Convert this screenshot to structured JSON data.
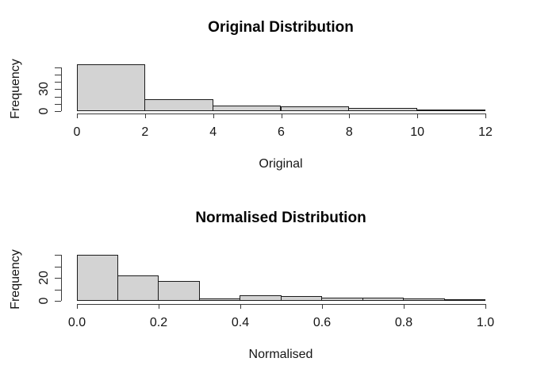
{
  "figure": {
    "background": "#ffffff",
    "text_color": "#111111"
  },
  "chart_data": [
    {
      "type": "histogram",
      "title": "Original Distribution",
      "xlabel": "Original",
      "ylabel": "Frequency",
      "breaks": [
        0,
        2,
        4,
        6,
        8,
        10,
        12
      ],
      "counts": [
        64,
        16,
        8,
        6,
        4,
        2
      ],
      "xlim": [
        0,
        12
      ],
      "ylim": [
        0,
        65
      ],
      "grid": false,
      "bar_fill": "#d3d3d3",
      "bar_border": "#1c1c1c",
      "x_ticks": [
        {
          "value": 0,
          "label": "0"
        },
        {
          "value": 2,
          "label": "2"
        },
        {
          "value": 4,
          "label": "4"
        },
        {
          "value": 6,
          "label": "6"
        },
        {
          "value": 8,
          "label": "8"
        },
        {
          "value": 10,
          "label": "10"
        },
        {
          "value": 12,
          "label": "12"
        }
      ],
      "y_ticks": [
        {
          "value": 0,
          "label": "0"
        },
        {
          "value": 10,
          "label": ""
        },
        {
          "value": 20,
          "label": ""
        },
        {
          "value": 30,
          "label": "30"
        },
        {
          "value": 40,
          "label": ""
        },
        {
          "value": 50,
          "label": ""
        },
        {
          "value": 60,
          "label": ""
        }
      ]
    },
    {
      "type": "histogram",
      "title": "Normalised Distribution",
      "xlabel": "Normalised",
      "ylabel": "Frequency",
      "breaks": [
        0,
        0.1,
        0.2,
        0.3,
        0.4,
        0.5,
        0.6,
        0.7,
        0.8,
        0.9,
        1.0
      ],
      "counts": [
        40,
        22,
        17,
        2,
        5,
        4,
        3,
        3,
        2,
        1
      ],
      "xlim": [
        0,
        1
      ],
      "ylim": [
        0,
        41
      ],
      "grid": false,
      "bar_fill": "#d3d3d3",
      "bar_border": "#1c1c1c",
      "x_ticks": [
        {
          "value": 0,
          "label": "0.0"
        },
        {
          "value": 0.2,
          "label": "0.2"
        },
        {
          "value": 0.4,
          "label": "0.4"
        },
        {
          "value": 0.6,
          "label": "0.6"
        },
        {
          "value": 0.8,
          "label": "0.8"
        },
        {
          "value": 1,
          "label": "1.0"
        }
      ],
      "y_ticks": [
        {
          "value": 0,
          "label": "0"
        },
        {
          "value": 10,
          "label": ""
        },
        {
          "value": 20,
          "label": "20"
        },
        {
          "value": 30,
          "label": ""
        },
        {
          "value": 40,
          "label": ""
        }
      ]
    }
  ]
}
